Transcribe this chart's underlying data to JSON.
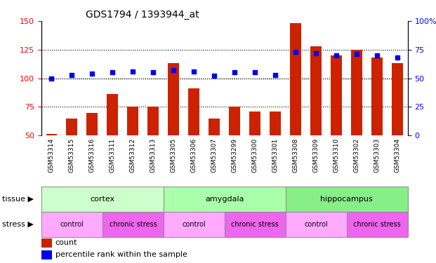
{
  "title": "GDS1794 / 1393944_at",
  "samples": [
    "GSM53314",
    "GSM53315",
    "GSM53316",
    "GSM53311",
    "GSM53312",
    "GSM53313",
    "GSM53305",
    "GSM53306",
    "GSM53307",
    "GSM53299",
    "GSM53300",
    "GSM53301",
    "GSM53308",
    "GSM53309",
    "GSM53310",
    "GSM53302",
    "GSM53303",
    "GSM53304"
  ],
  "count_values": [
    51,
    65,
    70,
    86,
    75,
    75,
    113,
    91,
    65,
    75,
    71,
    71,
    148,
    128,
    120,
    125,
    118,
    113
  ],
  "percentile_values": [
    50,
    53,
    54,
    55,
    56,
    55,
    57,
    56,
    52,
    55,
    55,
    53,
    73,
    72,
    70,
    71,
    70,
    68
  ],
  "tissue_groups": [
    {
      "label": "cortex",
      "start": 0,
      "end": 6
    },
    {
      "label": "amygdala",
      "start": 6,
      "end": 12
    },
    {
      "label": "hippocampus",
      "start": 12,
      "end": 18
    }
  ],
  "tissue_colors": [
    "#CCFFCC",
    "#AAFFAA",
    "#88EE88"
  ],
  "stress_groups": [
    {
      "label": "control",
      "start": 0,
      "end": 3
    },
    {
      "label": "chronic stress",
      "start": 3,
      "end": 6
    },
    {
      "label": "control",
      "start": 6,
      "end": 9
    },
    {
      "label": "chronic stress",
      "start": 9,
      "end": 12
    },
    {
      "label": "control",
      "start": 12,
      "end": 15
    },
    {
      "label": "chronic stress",
      "start": 15,
      "end": 18
    }
  ],
  "stress_colors": [
    "#FFAAFF",
    "#EE66EE",
    "#FFAAFF",
    "#EE66EE",
    "#FFAAFF",
    "#EE66EE"
  ],
  "bar_color": "#CC2200",
  "dot_color": "#0000EE",
  "left_ylim": [
    50,
    150
  ],
  "right_ylim": [
    0,
    100
  ],
  "left_yticks": [
    50,
    75,
    100,
    125,
    150
  ],
  "right_yticks": [
    0,
    25,
    50,
    75,
    100
  ],
  "right_yticklabels": [
    "0",
    "25",
    "50",
    "75",
    "100%"
  ],
  "grid_values": [
    75,
    100,
    125
  ],
  "legend_count_label": "count",
  "legend_pct_label": "percentile rank within the sample",
  "tissue_row_label": "tissue",
  "stress_row_label": "stress",
  "ticklabel_bg": "#DDDDDD"
}
